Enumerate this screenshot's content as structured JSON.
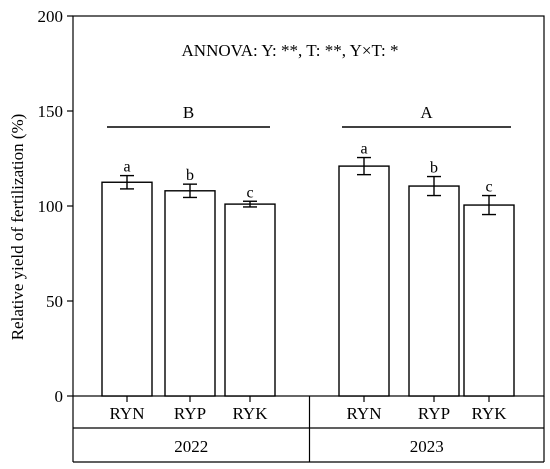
{
  "chart_data": {
    "type": "bar",
    "title": "",
    "xlabel": "",
    "ylabel": "Relative yield of fertilization (%)",
    "ylim": [
      0,
      200
    ],
    "yticks": [
      0,
      50,
      100,
      150,
      200
    ],
    "annotation": "ANNOVA: Y: **, T: **, Y×T: *",
    "groups": [
      {
        "year": "2022",
        "group_letter": "B",
        "categories": [
          "RYN",
          "RYP",
          "RYK"
        ],
        "values": [
          112.5,
          108.0,
          101.0
        ],
        "errors": [
          3.5,
          3.5,
          1.5
        ],
        "letters": [
          "a",
          "b",
          "c"
        ]
      },
      {
        "year": "2023",
        "group_letter": "A",
        "categories": [
          "RYN",
          "RYP",
          "RYK"
        ],
        "values": [
          121.0,
          110.5,
          100.5
        ],
        "errors": [
          4.5,
          5.0,
          5.0
        ],
        "letters": [
          "a",
          "b",
          "c"
        ]
      }
    ],
    "colors": {
      "bar_fill": "#ffffff",
      "stroke": "#000000"
    },
    "grid": false,
    "legend": "none"
  }
}
